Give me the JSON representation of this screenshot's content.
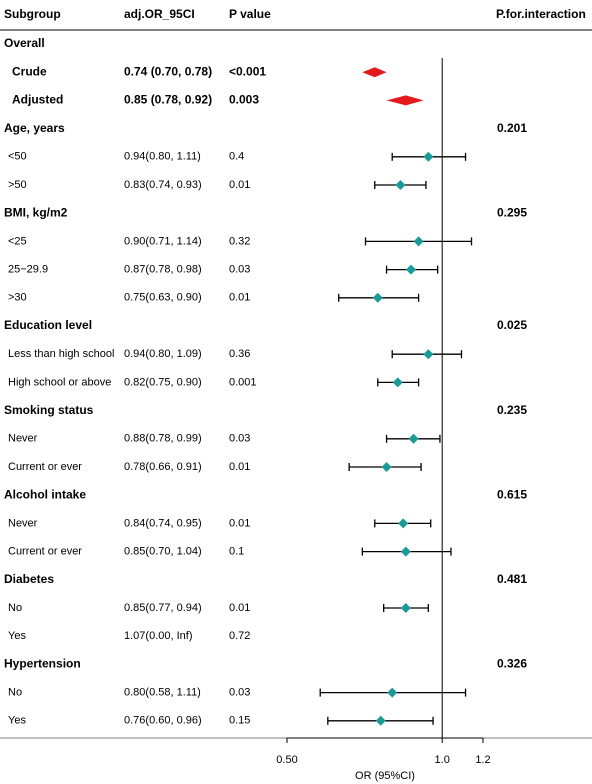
{
  "chart_data": {
    "type": "forest",
    "columns": [
      "Subgroup",
      "adj.OR_95CI",
      "P value",
      "P.for.interaction"
    ],
    "xlabel": "OR (95%CI)",
    "xlim": [
      0.5,
      1.2
    ],
    "xticks": [
      {
        "value": 0.5,
        "label": "0.50"
      },
      {
        "value": 1,
        "label": "1.0"
      },
      1.2
    ],
    "log_x": true,
    "ref_line": 1,
    "summary_color": "#e31a1c",
    "point_color": "#1a9a98",
    "overall": {
      "label": "Overall",
      "rows": [
        {
          "label": "Crude",
          "ci_text": "0.74 (0.70, 0.78)",
          "p": "<0.001",
          "est": 0.74,
          "lo": 0.7,
          "hi": 0.78
        },
        {
          "label": "Adjusted",
          "ci_text": "0.85 (0.78, 0.92)",
          "p": "0.003",
          "est": 0.85,
          "lo": 0.78,
          "hi": 0.92
        }
      ]
    },
    "groups": [
      {
        "label": "Age, years",
        "p_int": "0.201",
        "rows": [
          {
            "label": "<50",
            "ci_text": "0.94(0.80, 1.11)",
            "p": "0.4",
            "est": 0.94,
            "lo": 0.8,
            "hi": 1.11
          },
          {
            "label": ">50",
            "ci_text": "0.83(0.74, 0.93)",
            "p": "0.01",
            "est": 0.83,
            "lo": 0.74,
            "hi": 0.93
          }
        ]
      },
      {
        "label": "BMI, kg/m2",
        "p_int": "0.295",
        "rows": [
          {
            "label": "<25",
            "ci_text": "0.90(0.71, 1.14)",
            "p": "0.32",
            "est": 0.9,
            "lo": 0.71,
            "hi": 1.14
          },
          {
            "label": "25−29.9",
            "ci_text": "0.87(0.78, 0.98)",
            "p": "0.03",
            "est": 0.87,
            "lo": 0.78,
            "hi": 0.98
          },
          {
            "label": ">30",
            "ci_text": "0.75(0.63, 0.90)",
            "p": "0.01",
            "est": 0.75,
            "lo": 0.63,
            "hi": 0.9
          }
        ]
      },
      {
        "label": "Education level",
        "p_int": "0.025",
        "rows": [
          {
            "label": "Less than high school",
            "ci_text": "0.94(0.80, 1.09)",
            "p": "0.36",
            "est": 0.94,
            "lo": 0.8,
            "hi": 1.09
          },
          {
            "label": "High school or above",
            "ci_text": "0.82(0.75, 0.90)",
            "p": "0.001",
            "est": 0.82,
            "lo": 0.75,
            "hi": 0.9
          }
        ]
      },
      {
        "label": "Smoking status",
        "p_int": "0.235",
        "rows": [
          {
            "label": "Never",
            "ci_text": "0.88(0.78, 0.99)",
            "p": "0.03",
            "est": 0.88,
            "lo": 0.78,
            "hi": 0.99
          },
          {
            "label": "Current or ever",
            "ci_text": "0.78(0.66, 0.91)",
            "p": "0.01",
            "est": 0.78,
            "lo": 0.66,
            "hi": 0.91
          }
        ]
      },
      {
        "label": "Alcohol intake",
        "p_int": "0.615",
        "rows": [
          {
            "label": "Never",
            "ci_text": "0.84(0.74, 0.95)",
            "p": "0.01",
            "est": 0.84,
            "lo": 0.74,
            "hi": 0.95
          },
          {
            "label": "Current or ever",
            "ci_text": "0.85(0.70, 1.04)",
            "p": "0.1",
            "est": 0.85,
            "lo": 0.7,
            "hi": 1.04
          }
        ]
      },
      {
        "label": "Diabetes",
        "p_int": "0.481",
        "rows": [
          {
            "label": "No",
            "ci_text": "0.85(0.77, 0.94)",
            "p": "0.01",
            "est": 0.85,
            "lo": 0.77,
            "hi": 0.94
          },
          {
            "label": "Yes",
            "ci_text": "1.07(0.00, Inf)",
            "p": "0.72",
            "est": null,
            "lo": null,
            "hi": null
          }
        ]
      },
      {
        "label": "Hypertension",
        "p_int": "0.326",
        "rows": [
          {
            "label": "No",
            "ci_text": "0.80(0.58, 1.11)",
            "p": "0.03",
            "est": 0.8,
            "lo": 0.58,
            "hi": 1.11
          },
          {
            "label": "Yes",
            "ci_text": "0.76(0.60, 0.96)",
            "p": "0.15",
            "est": 0.76,
            "lo": 0.6,
            "hi": 0.96
          }
        ]
      }
    ]
  }
}
